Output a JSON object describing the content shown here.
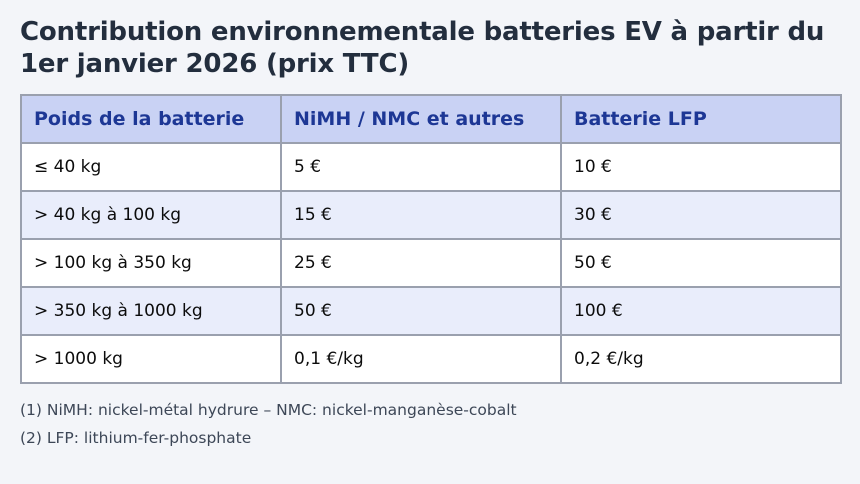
{
  "page": {
    "title": "Contribution environnementale batteries EV à partir du 1er janvier 2026 (prix TTC)"
  },
  "chart_data": {
    "type": "table",
    "title": "Contribution environnementale batteries EV à partir du 1er janvier 2026 (prix TTC)",
    "columns": [
      "Poids de la batterie",
      "NiMH / NMC et autres",
      "Batterie LFP"
    ],
    "rows": [
      [
        "≤ 40 kg",
        "5 €",
        "10 €"
      ],
      [
        "> 40 kg à 100 kg",
        "15 €",
        "30 €"
      ],
      [
        "> 100 kg à 350 kg",
        "25 €",
        "50 €"
      ],
      [
        "> 350 kg à 1000 kg",
        "50 €",
        "100 €"
      ],
      [
        "> 1000 kg",
        "0,1 €/kg",
        "0,2 €/kg"
      ]
    ],
    "footnotes": [
      "(1) NiMH: nickel-métal hydrure – NMC: nickel-manganèse-cobalt",
      "(2) LFP: lithium-fer-phosphate"
    ],
    "layout": {
      "striped_rows": true,
      "stripe_pattern": "even rows shaded lavender",
      "header_position": "top"
    }
  },
  "colors": {
    "page_background": "#f3f5f9",
    "title_text": "#232e3e",
    "header_background": "#c9d2f4",
    "header_text": "#1d3795",
    "row_background": "#ffffff",
    "row_alt_background": "#e9edfb",
    "cell_text": "#0c0c0c",
    "border": "#9aa0ae",
    "footnote_text": "#3d4757"
  }
}
